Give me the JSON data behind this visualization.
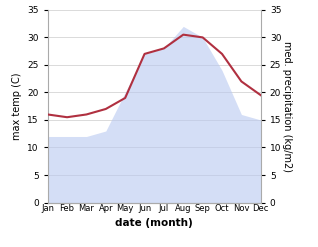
{
  "months": [
    "Jan",
    "Feb",
    "Mar",
    "Apr",
    "May",
    "Jun",
    "Jul",
    "Aug",
    "Sep",
    "Oct",
    "Nov",
    "Dec"
  ],
  "max_temp": [
    12,
    12,
    12,
    13,
    20,
    27,
    28,
    32,
    30,
    24,
    16,
    15
  ],
  "med_precip": [
    16,
    15.5,
    16,
    17,
    19,
    27,
    28,
    30.5,
    30,
    27,
    22,
    19.5
  ],
  "fill_color": "#b8c8f0",
  "fill_alpha": 0.6,
  "precip_color": "#b03040",
  "xlabel": "date (month)",
  "ylabel_left": "max temp (C)",
  "ylabel_right": "med. precipitation (kg/m2)",
  "ylim": [
    0,
    35
  ],
  "yticks": [
    0,
    5,
    10,
    15,
    20,
    25,
    30,
    35
  ],
  "background_color": "#ffffff",
  "grid_color": "#cccccc"
}
